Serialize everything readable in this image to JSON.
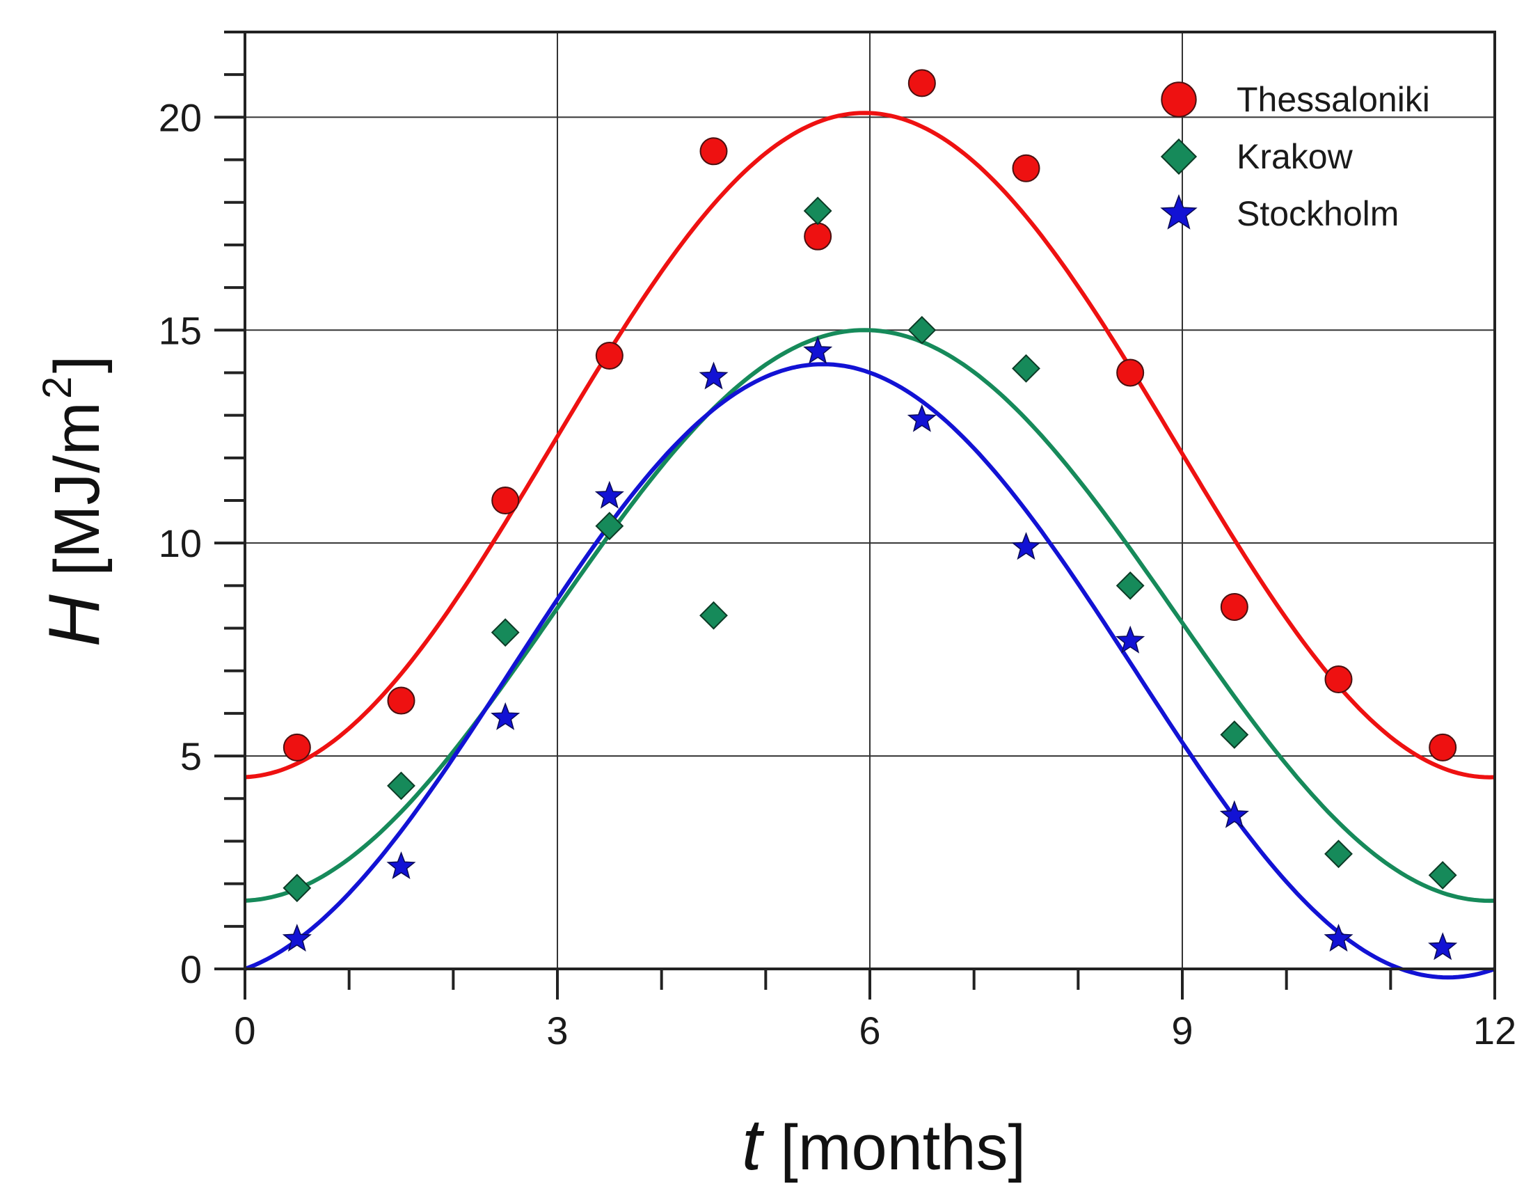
{
  "chart_data": {
    "type": "scatter",
    "title": "",
    "xlabel": {
      "symbol": "t",
      "unit": "[months]"
    },
    "ylabel": {
      "symbol": "H",
      "unit_main": "[MJ/m",
      "unit_sup": "2",
      "unit_end": "]"
    },
    "xlim": [
      0,
      12
    ],
    "ylim": [
      0,
      22
    ],
    "x_ticks": [
      0,
      3,
      6,
      9,
      12
    ],
    "x_tick_labels": [
      "0",
      "3",
      "6",
      "9",
      "12"
    ],
    "y_ticks": [
      0,
      5,
      10,
      15,
      20
    ],
    "y_tick_labels": [
      "0",
      "5",
      "10",
      "15",
      "20"
    ],
    "x_minor_step": 1,
    "y_minor_step": 1,
    "grid": true,
    "legend": {
      "placement": "top-right"
    },
    "series": [
      {
        "name": "Thessaloniki",
        "marker": "circle",
        "color": "#ee1111",
        "x": [
          0.5,
          1.5,
          2.5,
          3.5,
          4.5,
          5.5,
          6.5,
          7.5,
          8.5,
          9.5,
          10.5,
          11.5
        ],
        "y": [
          5.2,
          6.3,
          11.0,
          14.4,
          19.2,
          17.2,
          20.8,
          18.8,
          14.0,
          8.5,
          6.8,
          5.2
        ],
        "fit": {
          "min": 4.5,
          "max": 20.1,
          "peak_x": 5.95
        }
      },
      {
        "name": "Krakow",
        "marker": "diamond",
        "color": "#168a5a",
        "x": [
          0.5,
          1.5,
          2.5,
          3.5,
          4.5,
          5.5,
          6.5,
          7.5,
          8.5,
          9.5,
          10.5,
          11.5
        ],
        "y": [
          1.9,
          4.3,
          7.9,
          10.4,
          8.3,
          17.8,
          15.0,
          14.1,
          9.0,
          5.5,
          2.7,
          2.2
        ],
        "fit": {
          "min": 1.6,
          "max": 15.0,
          "peak_x": 5.95
        }
      },
      {
        "name": "Stockholm",
        "marker": "star",
        "color": "#1212d4",
        "x": [
          0.5,
          1.5,
          2.5,
          3.5,
          4.5,
          5.5,
          6.5,
          7.5,
          8.5,
          9.5,
          10.5,
          11.5
        ],
        "y": [
          0.7,
          2.4,
          5.9,
          11.1,
          13.9,
          14.5,
          12.9,
          9.9,
          7.7,
          3.6,
          0.7,
          0.5
        ],
        "fit": {
          "min": -0.2,
          "max": 14.2,
          "peak_x": 5.55
        }
      }
    ]
  }
}
